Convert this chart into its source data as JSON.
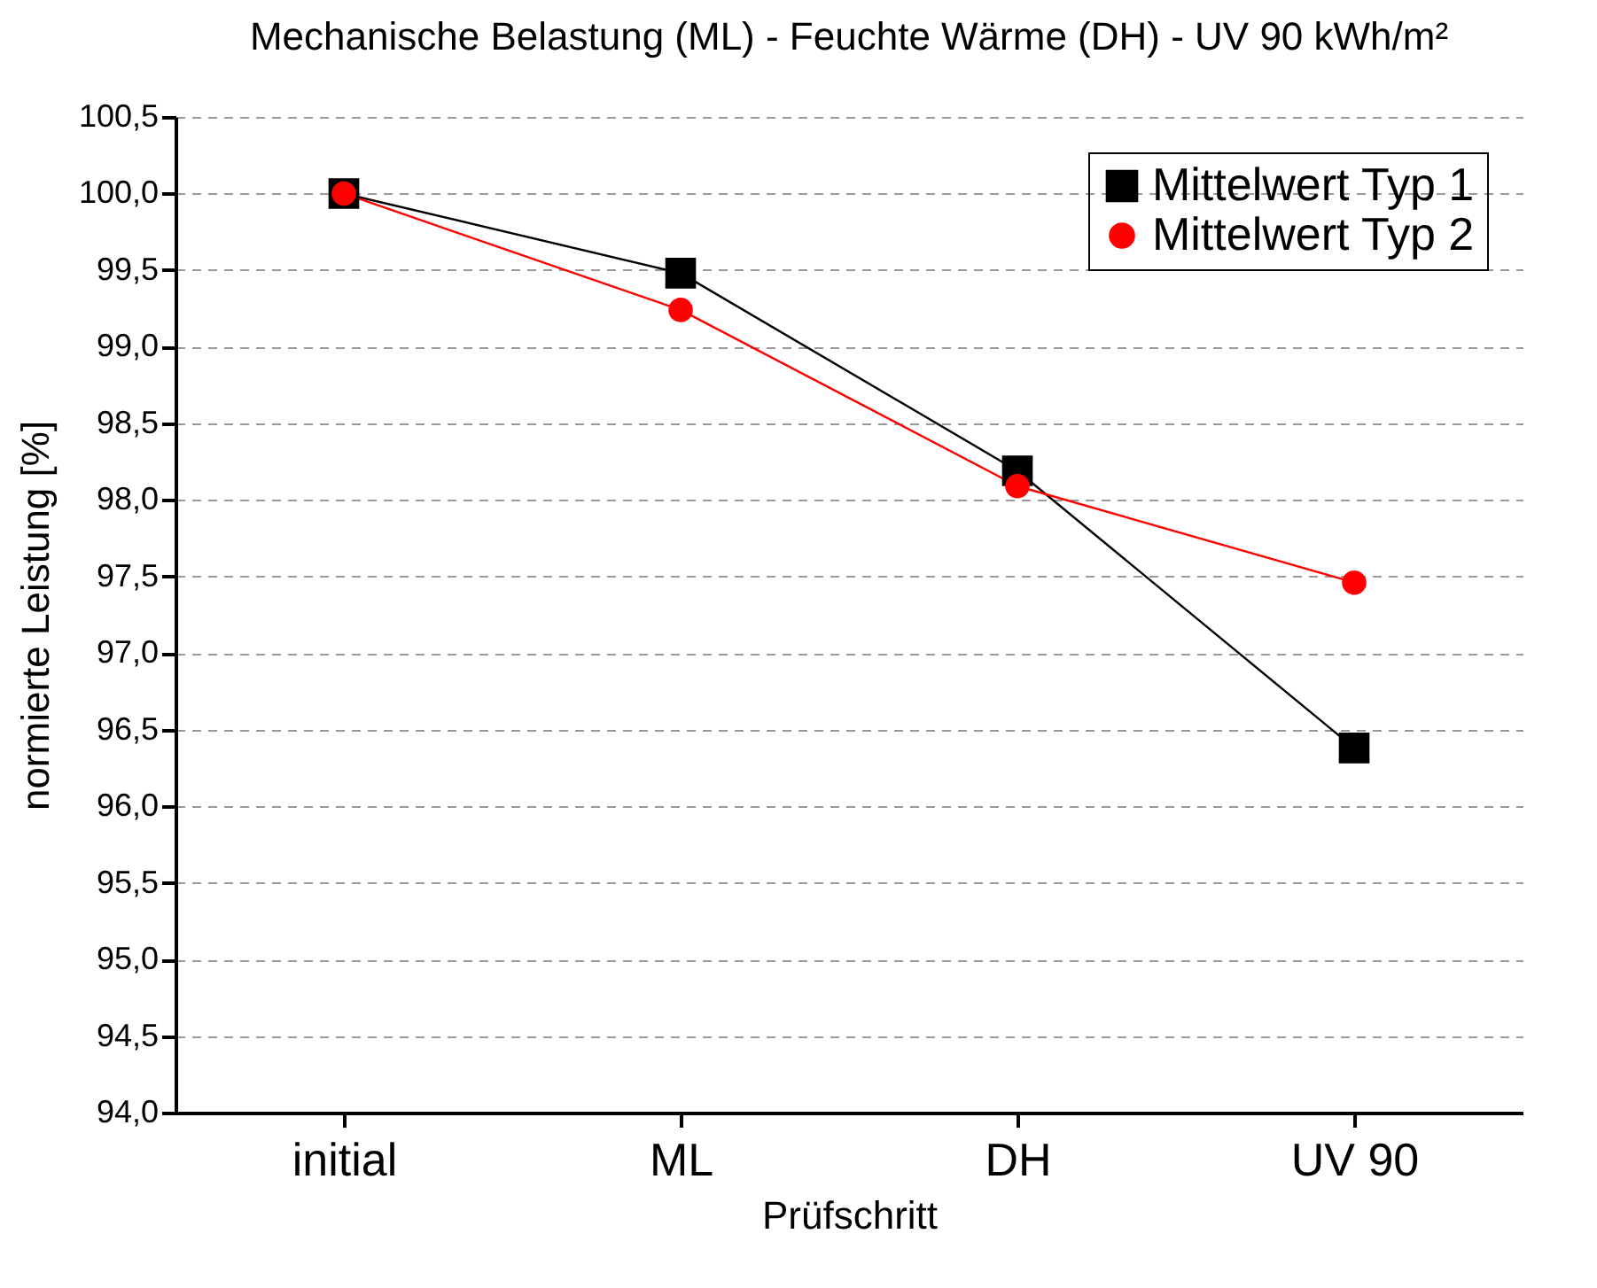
{
  "chart_data": {
    "type": "line",
    "title": "Mechanische Belastung (ML) - Feuchte Wärme (DH) - UV 90 kWh/m²",
    "xlabel": "Prüfschritt",
    "ylabel": "normierte Leistung [%]",
    "categories": [
      "initial",
      "ML",
      "DH",
      "UV 90"
    ],
    "series": [
      {
        "name": "Mittelwert Typ 1",
        "color": "#000000",
        "marker": "square",
        "values": [
          100.0,
          99.48,
          98.19,
          96.38
        ]
      },
      {
        "name": "Mittelwert Typ 2",
        "color": "#ff0000",
        "marker": "circle",
        "values": [
          100.0,
          99.24,
          98.09,
          97.46
        ]
      }
    ],
    "ylim": [
      94.0,
      100.5
    ],
    "yticks": [
      {
        "value": 94.0,
        "label": "94,0"
      },
      {
        "value": 94.5,
        "label": "94,5"
      },
      {
        "value": 95.0,
        "label": "95,0"
      },
      {
        "value": 95.5,
        "label": "95,5"
      },
      {
        "value": 96.0,
        "label": "96,0"
      },
      {
        "value": 96.5,
        "label": "96,5"
      },
      {
        "value": 97.0,
        "label": "97,0"
      },
      {
        "value": 97.5,
        "label": "97,5"
      },
      {
        "value": 98.0,
        "label": "98,0"
      },
      {
        "value": 98.5,
        "label": "98,5"
      },
      {
        "value": 99.0,
        "label": "99,0"
      },
      {
        "value": 99.5,
        "label": "99,5"
      },
      {
        "value": 100.0,
        "label": "100,0"
      },
      {
        "value": 100.5,
        "label": "100,5"
      }
    ],
    "grid": "y",
    "line_style": "solid",
    "legend": "top right"
  }
}
